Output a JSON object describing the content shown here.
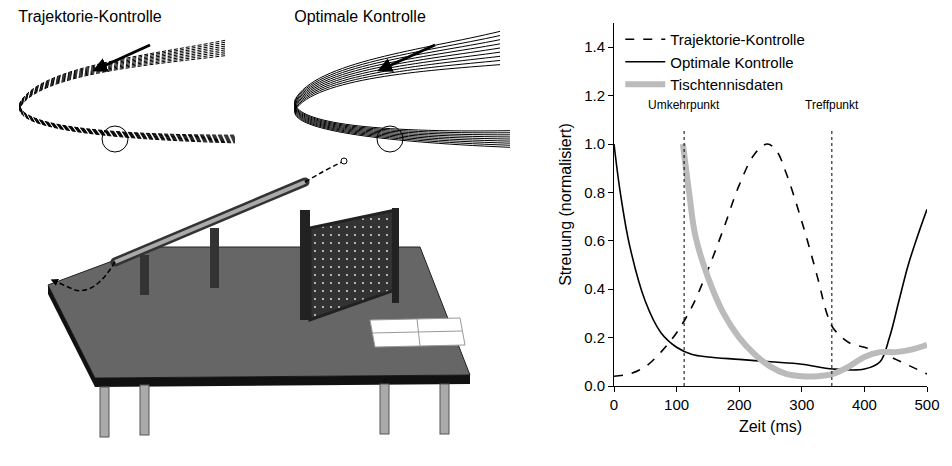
{
  "chart_data": {
    "type": "line",
    "xlabel": "Zeit (ms)",
    "ylabel": "Streuung (normalisiert)",
    "xlim": [
      0,
      500
    ],
    "xticks": [
      0,
      100,
      200,
      300,
      400,
      500
    ],
    "ylim": [
      0,
      1.5
    ],
    "yticks": [
      {
        "value": 0,
        "label": "0.0"
      },
      0.2,
      0.4,
      0.6,
      0.8,
      {
        "value": 1,
        "label": "1.0"
      },
      1.2,
      1.4
    ],
    "grid": false,
    "legend": "upper left",
    "series": [
      {
        "name": "Trajektorie-Kontrolle",
        "color": "#000000",
        "line_style": "dash",
        "x": [
          0,
          25,
          50,
          75,
          100,
          125,
          150,
          175,
          200,
          225,
          245,
          260,
          275,
          300,
          325,
          340,
          350,
          375,
          400,
          425,
          450,
          475,
          500
        ],
        "values": [
          0.04,
          0.05,
          0.08,
          0.14,
          0.22,
          0.33,
          0.48,
          0.65,
          0.83,
          0.96,
          1.0,
          0.97,
          0.88,
          0.68,
          0.45,
          0.3,
          0.24,
          0.18,
          0.16,
          0.14,
          0.11,
          0.08,
          0.05
        ]
      },
      {
        "name": "Optimale Kontrolle",
        "color": "#000000",
        "line_style": "solid",
        "x": [
          0,
          10,
          25,
          50,
          75,
          100,
          125,
          150,
          200,
          250,
          300,
          350,
          400,
          425,
          440,
          455,
          470,
          485,
          500
        ],
        "values": [
          1.0,
          0.8,
          0.58,
          0.35,
          0.22,
          0.16,
          0.13,
          0.12,
          0.11,
          0.1,
          0.09,
          0.07,
          0.07,
          0.1,
          0.2,
          0.35,
          0.5,
          0.62,
          0.73
        ]
      },
      {
        "name": "Tischtennisdaten",
        "color": "#bbbbbb",
        "line_style": "solid",
        "x": [
          110,
          120,
          130,
          150,
          175,
          200,
          225,
          250,
          275,
          300,
          325,
          350,
          375,
          400,
          425,
          450,
          475,
          500
        ],
        "values": [
          1.0,
          0.8,
          0.62,
          0.45,
          0.3,
          0.2,
          0.13,
          0.08,
          0.05,
          0.04,
          0.04,
          0.05,
          0.08,
          0.12,
          0.14,
          0.14,
          0.15,
          0.17
        ]
      }
    ],
    "annotations": [
      {
        "text": "Umkehrpunkt",
        "x": 112
      },
      {
        "text": "Treffpunkt",
        "x": 348
      }
    ]
  },
  "diagram": {
    "panels": [
      {
        "title": "Trajektorie-Kontrolle"
      },
      {
        "title": "Optimale Kontrolle"
      }
    ]
  }
}
